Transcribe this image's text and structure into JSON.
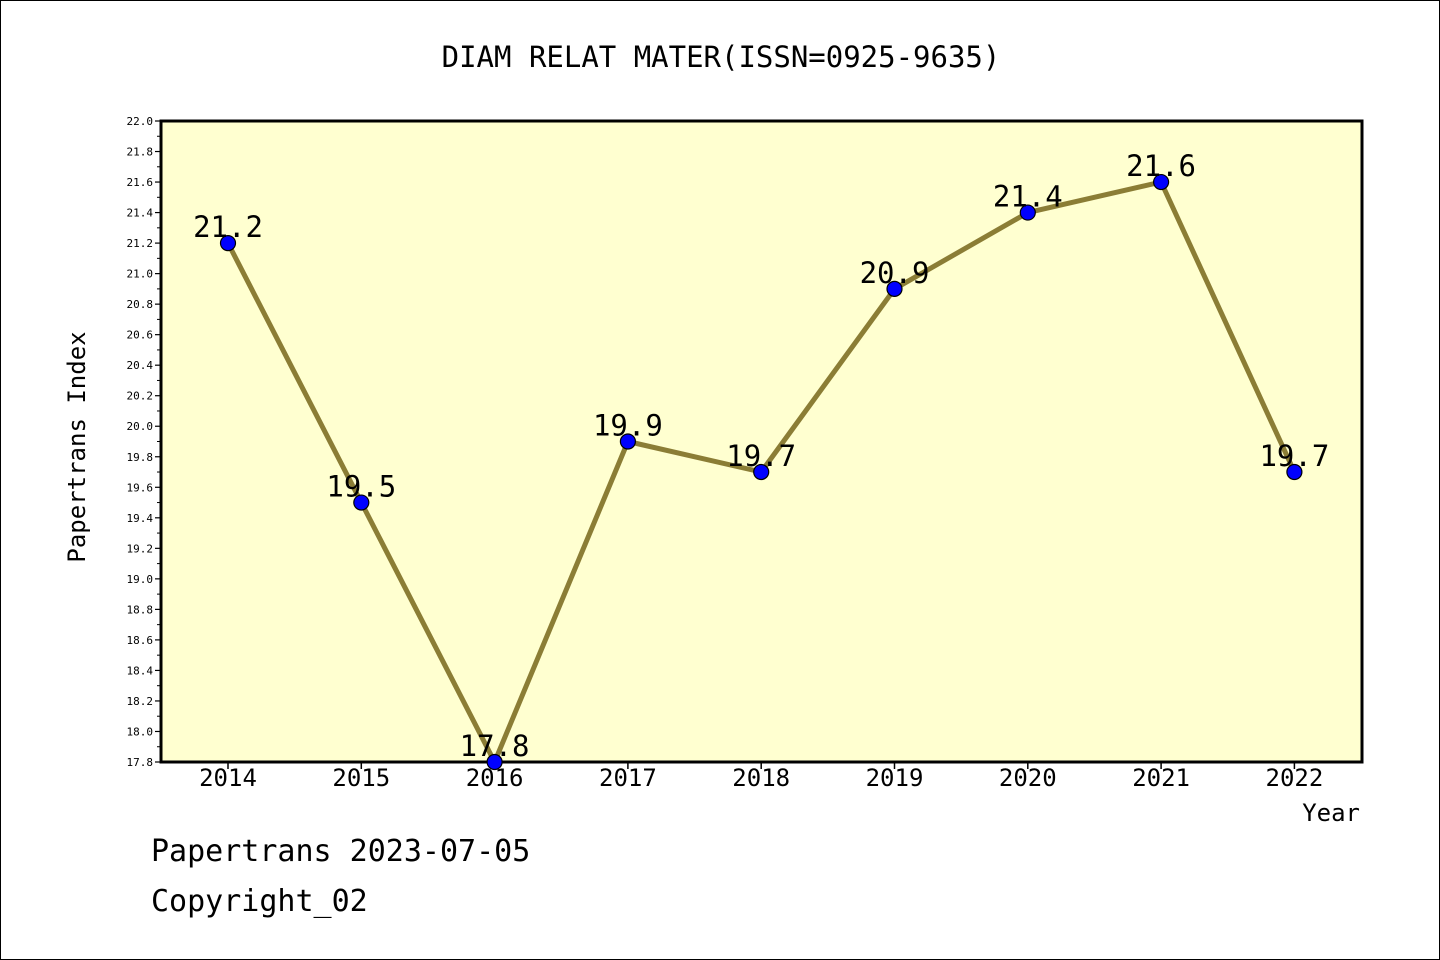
{
  "chart_data": {
    "type": "line",
    "title": "DIAM RELAT MATER(ISSN=0925-9635)",
    "xlabel": "Year",
    "ylabel": "Papertrans Index",
    "categories": [
      "2014",
      "2015",
      "2016",
      "2017",
      "2018",
      "2019",
      "2020",
      "2021",
      "2022"
    ],
    "series": [
      {
        "values": [
          21.2,
          19.5,
          17.8,
          19.9,
          19.7,
          20.9,
          21.4,
          21.6,
          19.7
        ]
      }
    ],
    "data_labels": [
      "21.2",
      "19.5",
      "17.8",
      "19.9",
      "19.7",
      "20.9",
      "21.4",
      "21.6",
      "19.7"
    ],
    "ylim": [
      17.8,
      22.0
    ],
    "yticks": [
      "17.8",
      "18.0",
      "18.2",
      "18.4",
      "18.6",
      "18.8",
      "19.0",
      "19.2",
      "19.4",
      "19.6",
      "19.8",
      "20.0",
      "20.2",
      "20.4",
      "20.6",
      "20.8",
      "21.0",
      "21.2",
      "21.4",
      "21.6",
      "21.8",
      "22.0"
    ],
    "grid": false,
    "colors": {
      "plot_background": "#ffffd0",
      "line": "#8b7d35",
      "marker": "#0000ff"
    }
  },
  "footer": {
    "line1": "Papertrans 2023-07-05",
    "line2": "Copyright_02"
  }
}
